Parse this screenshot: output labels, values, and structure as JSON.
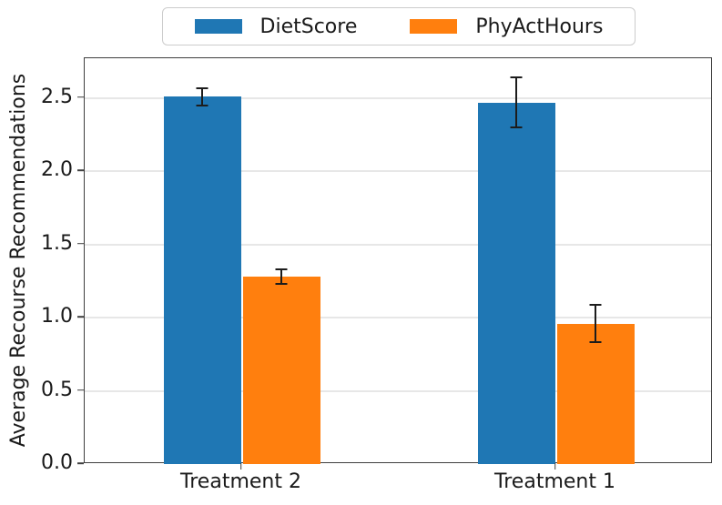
{
  "chart_data": {
    "type": "bar",
    "title": "",
    "xlabel": "",
    "ylabel": "Average Recourse Recommendations",
    "categories": [
      "Treatment 2",
      "Treatment 1"
    ],
    "series": [
      {
        "name": "DietScore",
        "color": "#1f77b4",
        "values": [
          2.51,
          2.47
        ],
        "errors": [
          0.06,
          0.17
        ]
      },
      {
        "name": "PhyActHours",
        "color": "#ff7f0e",
        "values": [
          1.28,
          0.96
        ],
        "errors": [
          0.05,
          0.13
        ]
      }
    ],
    "ytick_labels": [
      "0.0",
      "0.5",
      "1.0",
      "1.5",
      "2.0",
      "2.5"
    ],
    "ylim": [
      0,
      2.772
    ],
    "grid": true,
    "legend_position": "top-center",
    "error_bar_color": "#1c1c1c",
    "bar_group_layout": "grouped"
  }
}
